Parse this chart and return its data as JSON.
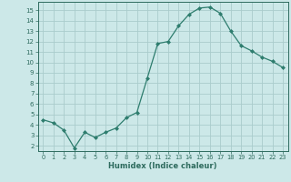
{
  "x": [
    0,
    1,
    2,
    3,
    4,
    5,
    6,
    7,
    8,
    9,
    10,
    11,
    12,
    13,
    14,
    15,
    16,
    17,
    18,
    19,
    20,
    21,
    22,
    23
  ],
  "y": [
    4.5,
    4.2,
    3.5,
    1.8,
    3.3,
    2.8,
    3.3,
    3.7,
    4.7,
    5.2,
    8.5,
    11.8,
    12.0,
    13.5,
    14.6,
    15.2,
    15.3,
    14.7,
    13.0,
    11.6,
    11.1,
    10.5,
    10.1,
    9.5
  ],
  "line_color": "#2e7d6e",
  "marker": "D",
  "marker_size": 2,
  "bg_color": "#cce8e8",
  "grid_color": "#aacccc",
  "xlabel": "Humidex (Indice chaleur)",
  "xlim": [
    -0.5,
    23.5
  ],
  "ylim": [
    1.5,
    15.8
  ],
  "yticks": [
    2,
    3,
    4,
    5,
    6,
    7,
    8,
    9,
    10,
    11,
    12,
    13,
    14,
    15
  ],
  "xticks": [
    0,
    1,
    2,
    3,
    4,
    5,
    6,
    7,
    8,
    9,
    10,
    11,
    12,
    13,
    14,
    15,
    16,
    17,
    18,
    19,
    20,
    21,
    22,
    23
  ],
  "label_color": "#2e6b5e",
  "tick_color": "#2e6b5e",
  "axis_color": "#2e6b5e"
}
